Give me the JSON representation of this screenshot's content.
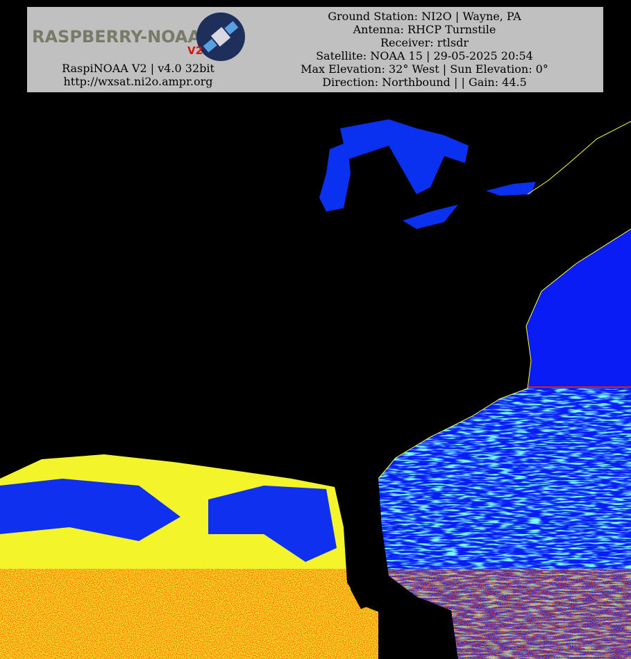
{
  "header": {
    "logo": {
      "name": "RASPBERRY-NOAA",
      "version": "V2"
    },
    "left_lines": [
      "RaspiNOAA V2 | v4.0 32bit",
      "http://wxsat.ni2o.ampr.org"
    ],
    "right_lines": [
      "Ground Station: NI2O | Wayne, PA",
      "Antenna: RHCP Turnstile",
      "Receiver: rtlsdr",
      "Satellite: NOAA 15 | 29-05-2025 20:54",
      "Max Elevation: 32° West | Sun Elevation: 0°",
      "Direction: Northbound | | Gain: 44.5"
    ]
  }
}
